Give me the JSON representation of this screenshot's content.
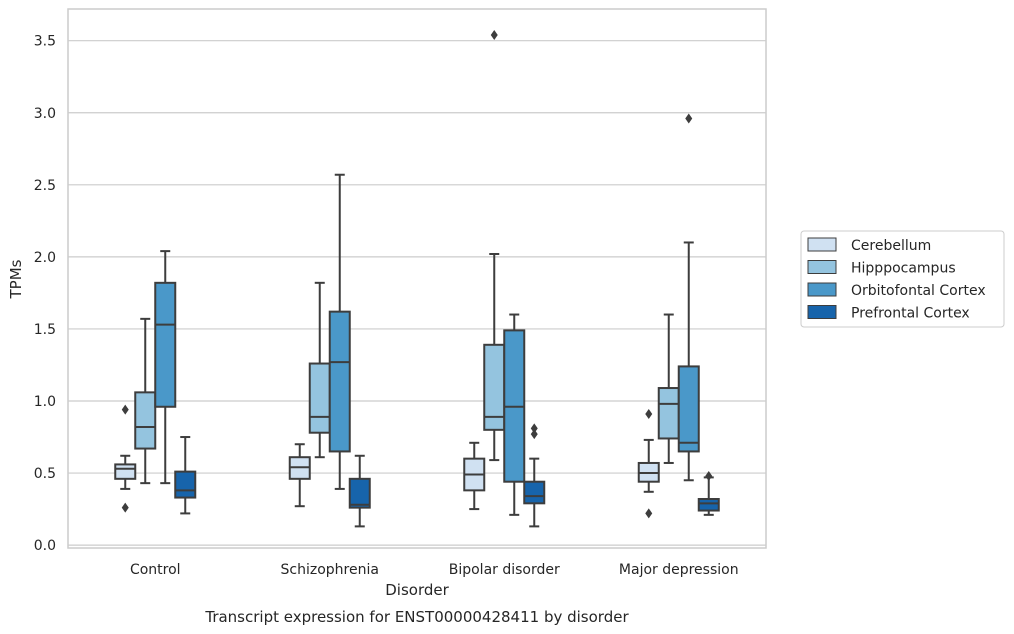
{
  "chart_data": {
    "type": "boxplot",
    "caption": "Transcript expression for ENST00000428411 by disorder",
    "xlabel": "Disorder",
    "ylabel": "TPMs",
    "ylim": [
      -0.02,
      3.72
    ],
    "yticks": [
      0.0,
      0.5,
      1.0,
      1.5,
      2.0,
      2.5,
      3.0,
      3.5
    ],
    "ytick_labels": [
      "0.0",
      "0.5",
      "1.0",
      "1.5",
      "2.0",
      "2.5",
      "3.0",
      "3.5"
    ],
    "grid": "horizontal",
    "legend_position": "right",
    "categories": [
      "Control",
      "Schizophrenia",
      "Bipolar disorder",
      "Major depression"
    ],
    "series": [
      {
        "name": "Cerebellum",
        "color": "#d0e1f2",
        "boxes": [
          {
            "whislo": 0.39,
            "q1": 0.46,
            "med": 0.53,
            "q3": 0.56,
            "whishi": 0.62,
            "fliers": [
              0.94,
              0.26
            ]
          },
          {
            "whislo": 0.27,
            "q1": 0.46,
            "med": 0.54,
            "q3": 0.61,
            "whishi": 0.7,
            "fliers": []
          },
          {
            "whislo": 0.25,
            "q1": 0.38,
            "med": 0.49,
            "q3": 0.6,
            "whishi": 0.71,
            "fliers": []
          },
          {
            "whislo": 0.37,
            "q1": 0.44,
            "med": 0.5,
            "q3": 0.57,
            "whishi": 0.73,
            "fliers": [
              0.91,
              0.22
            ]
          }
        ]
      },
      {
        "name": "Hipppocampus",
        "color": "#94c4df",
        "boxes": [
          {
            "whislo": 0.43,
            "q1": 0.67,
            "med": 0.82,
            "q3": 1.06,
            "whishi": 1.57,
            "fliers": []
          },
          {
            "whislo": 0.61,
            "q1": 0.78,
            "med": 0.89,
            "q3": 1.26,
            "whishi": 1.82,
            "fliers": []
          },
          {
            "whislo": 0.59,
            "q1": 0.8,
            "med": 0.89,
            "q3": 1.39,
            "whishi": 2.02,
            "fliers": [
              3.54
            ]
          },
          {
            "whislo": 0.57,
            "q1": 0.74,
            "med": 0.98,
            "q3": 1.09,
            "whishi": 1.6,
            "fliers": []
          }
        ]
      },
      {
        "name": "Orbitofontal Cortex",
        "color": "#4a98c9",
        "boxes": [
          {
            "whislo": 0.43,
            "q1": 0.96,
            "med": 1.53,
            "q3": 1.82,
            "whishi": 2.04,
            "fliers": []
          },
          {
            "whislo": 0.39,
            "q1": 0.65,
            "med": 1.27,
            "q3": 1.62,
            "whishi": 2.57,
            "fliers": []
          },
          {
            "whislo": 0.21,
            "q1": 0.44,
            "med": 0.96,
            "q3": 1.49,
            "whishi": 1.6,
            "fliers": []
          },
          {
            "whislo": 0.45,
            "q1": 0.65,
            "med": 0.71,
            "q3": 1.24,
            "whishi": 2.1,
            "fliers": [
              2.96
            ]
          }
        ]
      },
      {
        "name": "Prefrontal Cortex",
        "color": "#1764ab",
        "boxes": [
          {
            "whislo": 0.22,
            "q1": 0.33,
            "med": 0.38,
            "q3": 0.51,
            "whishi": 0.75,
            "fliers": []
          },
          {
            "whislo": 0.13,
            "q1": 0.26,
            "med": 0.28,
            "q3": 0.46,
            "whishi": 0.62,
            "fliers": []
          },
          {
            "whislo": 0.13,
            "q1": 0.29,
            "med": 0.34,
            "q3": 0.44,
            "whishi": 0.6,
            "fliers": [
              0.81,
              0.77
            ]
          },
          {
            "whislo": 0.21,
            "q1": 0.24,
            "med": 0.29,
            "q3": 0.32,
            "whishi": 0.47,
            "fliers": [
              0.48
            ]
          }
        ]
      }
    ]
  }
}
